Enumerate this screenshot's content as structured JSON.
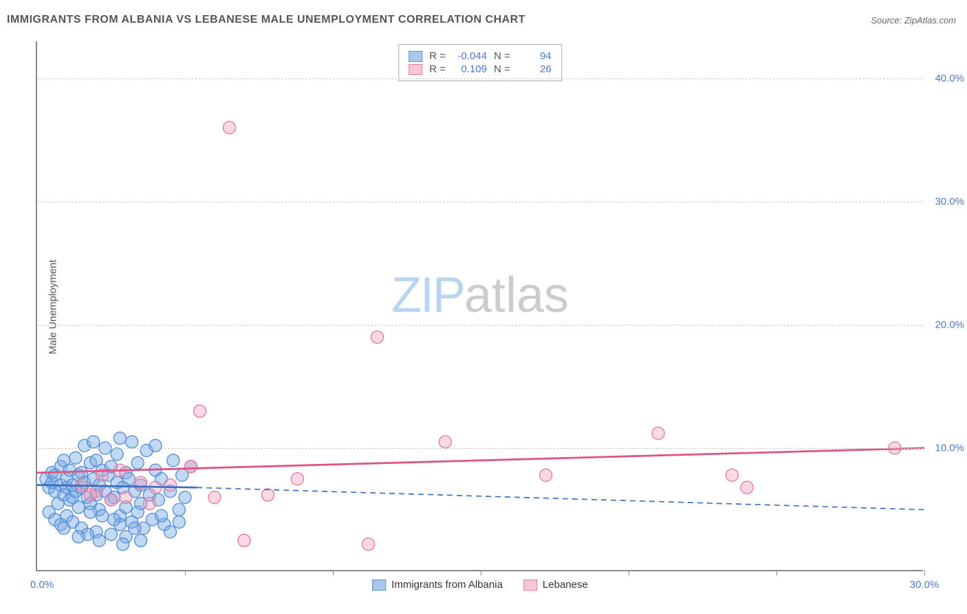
{
  "chart": {
    "type": "scatter",
    "title": "IMMIGRANTS FROM ALBANIA VS LEBANESE MALE UNEMPLOYMENT CORRELATION CHART",
    "source": "Source: ZipAtlas.com",
    "watermark_zip": "ZIP",
    "watermark_atlas": "atlas",
    "y_axis_label": "Male Unemployment",
    "background_color": "#ffffff",
    "grid_color": "#cccccc",
    "axis_color": "#888888",
    "tick_label_color": "#4a7bc8",
    "x_range": [
      0,
      30
    ],
    "y_range": [
      0,
      43
    ],
    "y_ticks": [
      {
        "v": 10,
        "label": "10.0%"
      },
      {
        "v": 20,
        "label": "20.0%"
      },
      {
        "v": 30,
        "label": "30.0%"
      },
      {
        "v": 40,
        "label": "40.0%"
      }
    ],
    "x_ticks": [
      5,
      10,
      15,
      20,
      25,
      30
    ],
    "x_min_label": "0.0%",
    "x_max_label": "30.0%",
    "marker_radius": 9,
    "marker_stroke_width": 1.4,
    "series": [
      {
        "name": "Immigrants from Albania",
        "color_fill": "rgba(120,170,230,0.45)",
        "color_stroke": "#5a8fd6",
        "swatch_fill": "#a9c8ed",
        "swatch_border": "#5a8fd6",
        "R_label": "R =",
        "R_value": "-0.044",
        "N_label": "N =",
        "N_value": "94",
        "trend": {
          "x1": 0,
          "y1": 7.0,
          "x2_solid": 5.4,
          "y2_solid": 6.8,
          "x2": 30,
          "y2": 5.0,
          "color": "#3a6fc0",
          "width": 2.8
        },
        "points": [
          [
            0.3,
            7.5
          ],
          [
            0.4,
            6.8
          ],
          [
            0.5,
            7.2
          ],
          [
            0.5,
            8.0
          ],
          [
            0.6,
            6.5
          ],
          [
            0.6,
            7.8
          ],
          [
            0.7,
            5.5
          ],
          [
            0.8,
            7.0
          ],
          [
            0.8,
            8.5
          ],
          [
            0.9,
            6.2
          ],
          [
            0.9,
            9.0
          ],
          [
            1.0,
            6.8
          ],
          [
            1.0,
            7.5
          ],
          [
            1.1,
            5.8
          ],
          [
            1.1,
            8.2
          ],
          [
            1.2,
            6.0
          ],
          [
            1.2,
            7.0
          ],
          [
            1.3,
            9.2
          ],
          [
            1.3,
            6.5
          ],
          [
            1.4,
            7.8
          ],
          [
            1.4,
            5.2
          ],
          [
            1.5,
            8.0
          ],
          [
            1.5,
            6.8
          ],
          [
            1.6,
            10.2
          ],
          [
            1.6,
            7.2
          ],
          [
            1.7,
            6.0
          ],
          [
            1.8,
            8.8
          ],
          [
            1.8,
            5.5
          ],
          [
            1.9,
            7.5
          ],
          [
            1.9,
            10.5
          ],
          [
            2.0,
            6.2
          ],
          [
            2.0,
            9.0
          ],
          [
            2.1,
            7.0
          ],
          [
            2.1,
            5.0
          ],
          [
            2.2,
            8.2
          ],
          [
            2.3,
            6.5
          ],
          [
            2.3,
            10.0
          ],
          [
            2.4,
            7.8
          ],
          [
            2.5,
            5.8
          ],
          [
            2.5,
            8.5
          ],
          [
            2.6,
            6.0
          ],
          [
            2.7,
            9.5
          ],
          [
            2.7,
            7.2
          ],
          [
            2.8,
            4.5
          ],
          [
            2.8,
            10.8
          ],
          [
            2.9,
            6.8
          ],
          [
            3.0,
            8.0
          ],
          [
            3.0,
            5.2
          ],
          [
            3.1,
            7.5
          ],
          [
            3.2,
            4.0
          ],
          [
            3.2,
            10.5
          ],
          [
            3.3,
            6.5
          ],
          [
            3.4,
            8.8
          ],
          [
            3.5,
            5.5
          ],
          [
            3.5,
            7.0
          ],
          [
            3.6,
            3.5
          ],
          [
            3.7,
            9.8
          ],
          [
            3.8,
            6.2
          ],
          [
            3.9,
            4.2
          ],
          [
            4.0,
            8.2
          ],
          [
            4.0,
            10.2
          ],
          [
            4.1,
            5.8
          ],
          [
            4.2,
            7.5
          ],
          [
            4.3,
            3.8
          ],
          [
            4.5,
            6.5
          ],
          [
            4.6,
            9.0
          ],
          [
            4.8,
            5.0
          ],
          [
            4.9,
            7.8
          ],
          [
            5.0,
            6.0
          ],
          [
            5.2,
            8.5
          ],
          [
            0.4,
            4.8
          ],
          [
            0.6,
            4.2
          ],
          [
            0.8,
            3.8
          ],
          [
            1.0,
            4.5
          ],
          [
            1.2,
            4.0
          ],
          [
            1.5,
            3.5
          ],
          [
            1.8,
            4.8
          ],
          [
            2.0,
            3.2
          ],
          [
            2.2,
            4.5
          ],
          [
            2.5,
            3.0
          ],
          [
            2.8,
            3.8
          ],
          [
            3.0,
            2.8
          ],
          [
            3.3,
            3.5
          ],
          [
            3.5,
            2.5
          ],
          [
            2.6,
            4.2
          ],
          [
            1.7,
            3.0
          ],
          [
            0.9,
            3.5
          ],
          [
            1.4,
            2.8
          ],
          [
            2.1,
            2.5
          ],
          [
            2.9,
            2.2
          ],
          [
            3.4,
            4.8
          ],
          [
            4.2,
            4.5
          ],
          [
            4.5,
            3.2
          ],
          [
            4.8,
            4.0
          ]
        ]
      },
      {
        "name": "Lebanese",
        "color_fill": "rgba(240,160,190,0.4)",
        "color_stroke": "#e77ba0",
        "swatch_fill": "#f5c6d6",
        "swatch_border": "#e77ba0",
        "R_label": "R =",
        "R_value": "0.109",
        "N_label": "N =",
        "N_value": "26",
        "trend": {
          "x1": 0,
          "y1": 8.0,
          "x2_solid": 30,
          "y2_solid": 10.0,
          "x2": 30,
          "y2": 10.0,
          "color": "#e0547f",
          "width": 2.8
        },
        "points": [
          [
            1.5,
            7.0
          ],
          [
            2.0,
            6.5
          ],
          [
            2.2,
            7.8
          ],
          [
            2.5,
            5.8
          ],
          [
            2.8,
            8.2
          ],
          [
            3.0,
            6.0
          ],
          [
            3.5,
            7.2
          ],
          [
            3.8,
            5.5
          ],
          [
            4.0,
            6.8
          ],
          [
            5.2,
            8.5
          ],
          [
            5.5,
            13.0
          ],
          [
            6.0,
            6.0
          ],
          [
            6.5,
            36.0
          ],
          [
            7.0,
            2.5
          ],
          [
            7.8,
            6.2
          ],
          [
            8.8,
            7.5
          ],
          [
            11.2,
            2.2
          ],
          [
            11.5,
            19.0
          ],
          [
            13.8,
            10.5
          ],
          [
            17.2,
            7.8
          ],
          [
            21.0,
            11.2
          ],
          [
            23.5,
            7.8
          ],
          [
            24.0,
            6.8
          ],
          [
            29.0,
            10.0
          ],
          [
            4.5,
            7.0
          ],
          [
            1.8,
            6.2
          ]
        ]
      }
    ]
  }
}
